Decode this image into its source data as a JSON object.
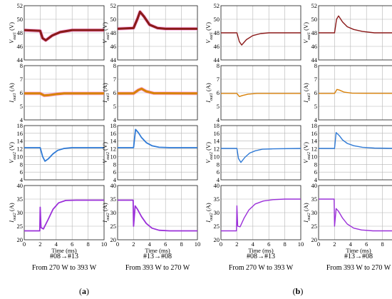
{
  "figure": {
    "panel_labels": [
      "(a)",
      "(b)"
    ],
    "caption_col1_l1": "#08→#13",
    "caption_col1_l2": "From 270 W to 393 W",
    "caption_col2_l1": "#13→#08",
    "caption_col2_l2": "From 393 W to 270 W",
    "xlabel": "Time (ms)",
    "rows": [
      {
        "sym": "V",
        "sub": "out1",
        "unit": "(V)",
        "ylim": [
          44,
          52
        ],
        "yticks": [
          44,
          46,
          48,
          50,
          52
        ],
        "color": "#8B1A1A",
        "halo": "#ff66cc"
      },
      {
        "sym": "I",
        "sub": "out1",
        "unit": "(A)",
        "ylim": [
          4,
          8
        ],
        "yticks": [
          4,
          5,
          6,
          7,
          8
        ],
        "color": "#d9820a",
        "halo": "#ff66cc"
      },
      {
        "sym": "V",
        "sub": "out2",
        "unit": "(V)",
        "ylim": [
          4,
          18
        ],
        "yticks": [
          4,
          6,
          8,
          10,
          12,
          14,
          16,
          18
        ],
        "color": "#2f7ad6",
        "halo": null
      },
      {
        "sym": "I",
        "sub": "out2",
        "unit": "(A)",
        "ylim": [
          20,
          40
        ],
        "yticks": [
          20,
          25,
          30,
          35,
          40
        ],
        "color": "#9b30d9",
        "halo": null
      }
    ],
    "xticks": [
      0,
      2,
      4,
      6,
      8,
      10
    ]
  },
  "chart_data": [
    {
      "type": "line",
      "panel": "a",
      "row": "Vout1",
      "transition": "#08→#13",
      "xlabel": "Time (ms)",
      "ylabel": "Vout1 (V)",
      "xlim": [
        0,
        10
      ],
      "ylim": [
        44,
        52
      ],
      "x": [
        0,
        2,
        2.3,
        2.7,
        3.5,
        4.5,
        6,
        10
      ],
      "y": [
        48.4,
        48.3,
        47.2,
        46.9,
        47.6,
        48.1,
        48.4,
        48.4
      ]
    },
    {
      "type": "line",
      "panel": "a",
      "row": "Vout1",
      "transition": "#13→#08",
      "xlabel": "Time (ms)",
      "ylabel": "Vout1 (V)",
      "xlim": [
        0,
        10
      ],
      "ylim": [
        44,
        52
      ],
      "x": [
        0,
        2,
        2.5,
        2.8,
        3.3,
        4,
        5,
        6,
        10
      ],
      "y": [
        48.6,
        48.7,
        50.1,
        51.1,
        50.4,
        49.2,
        48.7,
        48.6,
        48.6
      ]
    },
    {
      "type": "line",
      "panel": "a",
      "row": "Iout1",
      "transition": "#08→#13",
      "xlabel": "Time (ms)",
      "ylabel": "Iout1 (A)",
      "xlim": [
        0,
        10
      ],
      "ylim": [
        4,
        8
      ],
      "x": [
        0,
        2,
        2.5,
        3,
        4,
        5,
        10
      ],
      "y": [
        5.95,
        5.95,
        5.8,
        5.82,
        5.9,
        5.95,
        5.95
      ]
    },
    {
      "type": "line",
      "panel": "a",
      "row": "Iout1",
      "transition": "#13→#08",
      "xlabel": "Time (ms)",
      "ylabel": "Iout1 (A)",
      "xlim": [
        0,
        10
      ],
      "ylim": [
        4,
        8
      ],
      "x": [
        0,
        2,
        2.6,
        3,
        3.6,
        4.5,
        10
      ],
      "y": [
        5.95,
        5.95,
        6.2,
        6.3,
        6.1,
        5.97,
        5.95
      ]
    },
    {
      "type": "line",
      "panel": "a",
      "row": "Vout2",
      "transition": "#08→#13",
      "xlabel": "Time (ms)",
      "ylabel": "Vout2 (V)",
      "xlim": [
        0,
        10
      ],
      "ylim": [
        4,
        18
      ],
      "x": [
        0,
        2,
        2.3,
        2.6,
        3,
        3.6,
        4.2,
        5,
        6,
        10
      ],
      "y": [
        12.3,
        12.3,
        10.0,
        8.8,
        9.4,
        10.7,
        11.6,
        12.1,
        12.3,
        12.3
      ]
    },
    {
      "type": "line",
      "panel": "a",
      "row": "Vout2",
      "transition": "#13→#08",
      "xlabel": "Time (ms)",
      "ylabel": "Vout2 (V)",
      "xlim": [
        0,
        10
      ],
      "ylim": [
        4,
        18
      ],
      "x": [
        0,
        2,
        2.25,
        2.6,
        3,
        3.6,
        4.3,
        5.2,
        6.5,
        10
      ],
      "y": [
        12.3,
        12.3,
        17.0,
        16.2,
        14.9,
        13.6,
        12.8,
        12.4,
        12.3,
        12.3
      ]
    },
    {
      "type": "line",
      "panel": "a",
      "row": "Iout2",
      "transition": "#08→#13",
      "xlabel": "Time (ms)",
      "ylabel": "Iout2 (A)",
      "xlim": [
        0,
        10
      ],
      "ylim": [
        20,
        40
      ],
      "x": [
        0,
        1.95,
        2.0,
        2.1,
        2.4,
        3,
        3.6,
        4.3,
        5.2,
        6.5,
        10
      ],
      "y": [
        23.3,
        23.3,
        32,
        24.5,
        24.0,
        27.5,
        31.2,
        33.6,
        34.5,
        34.6,
        34.6
      ]
    },
    {
      "type": "line",
      "panel": "a",
      "row": "Iout2",
      "transition": "#13→#08",
      "xlabel": "Time (ms)",
      "ylabel": "Iout2 (A)",
      "xlim": [
        0,
        10
      ],
      "ylim": [
        20,
        40
      ],
      "x": [
        0,
        1.95,
        2.0,
        2.2,
        2.5,
        3,
        3.6,
        4.3,
        5.2,
        6.5,
        10
      ],
      "y": [
        34.6,
        34.6,
        25,
        32.5,
        31.2,
        28.5,
        26.0,
        24.3,
        23.5,
        23.3,
        23.3
      ]
    },
    {
      "type": "line",
      "panel": "b",
      "row": "Vout1",
      "transition": "#08→#13",
      "xlabel": "Time (ms)",
      "ylabel": "Vout1 (V)",
      "xlim": [
        0,
        10
      ],
      "ylim": [
        44,
        52
      ],
      "x": [
        0,
        2,
        2.3,
        2.6,
        3.2,
        4,
        5,
        6,
        10
      ],
      "y": [
        48.0,
        48.0,
        46.7,
        46.2,
        47.0,
        47.6,
        47.9,
        48.0,
        48.0
      ]
    },
    {
      "type": "line",
      "panel": "b",
      "row": "Vout1",
      "transition": "#13→#08",
      "xlabel": "Time (ms)",
      "ylabel": "Vout1 (V)",
      "xlim": [
        0,
        10
      ],
      "ylim": [
        44,
        52
      ],
      "x": [
        0,
        2,
        2.25,
        2.5,
        3,
        3.6,
        4.4,
        5.5,
        7,
        10
      ],
      "y": [
        48.0,
        48.0,
        50.0,
        50.5,
        49.6,
        48.9,
        48.5,
        48.2,
        48.0,
        48.0
      ]
    },
    {
      "type": "line",
      "panel": "b",
      "row": "Iout1",
      "transition": "#08→#13",
      "xlabel": "Time (ms)",
      "ylabel": "Iout1 (A)",
      "xlim": [
        0,
        10
      ],
      "ylim": [
        4,
        8
      ],
      "x": [
        0,
        2,
        2.3,
        2.7,
        3.4,
        4.5,
        10
      ],
      "y": [
        5.95,
        5.95,
        5.72,
        5.8,
        5.9,
        5.95,
        5.95
      ]
    },
    {
      "type": "line",
      "panel": "b",
      "row": "Iout1",
      "transition": "#13→#08",
      "xlabel": "Time (ms)",
      "ylabel": "Iout1 (A)",
      "xlim": [
        0,
        10
      ],
      "ylim": [
        4,
        8
      ],
      "x": [
        0,
        2,
        2.3,
        2.6,
        3.2,
        4.2,
        10
      ],
      "y": [
        5.95,
        5.95,
        6.25,
        6.2,
        6.05,
        5.97,
        5.95
      ]
    },
    {
      "type": "line",
      "panel": "b",
      "row": "Vout2",
      "transition": "#08→#13",
      "xlabel": "Time (ms)",
      "ylabel": "Vout2 (V)",
      "xlim": [
        0,
        10
      ],
      "ylim": [
        4,
        18
      ],
      "x": [
        0,
        2,
        2.2,
        2.5,
        3,
        3.6,
        4.3,
        5.2,
        6.5,
        10
      ],
      "y": [
        12.1,
        12.1,
        9.5,
        8.5,
        9.8,
        10.9,
        11.5,
        11.9,
        12.0,
        12.1
      ]
    },
    {
      "type": "line",
      "panel": "b",
      "row": "Vout2",
      "transition": "#13→#08",
      "xlabel": "Time (ms)",
      "ylabel": "Vout2 (V)",
      "xlim": [
        0,
        10
      ],
      "ylim": [
        4,
        18
      ],
      "x": [
        0,
        2,
        2.2,
        2.6,
        3,
        3.6,
        4.4,
        5.5,
        7,
        10
      ],
      "y": [
        12.1,
        12.1,
        16.2,
        15.4,
        14.3,
        13.4,
        12.8,
        12.4,
        12.2,
        12.1
      ]
    },
    {
      "type": "line",
      "panel": "b",
      "row": "Iout2",
      "transition": "#08→#13",
      "xlabel": "Time (ms)",
      "ylabel": "Iout2 (A)",
      "xlim": [
        0,
        10
      ],
      "ylim": [
        20,
        40
      ],
      "x": [
        0,
        1.95,
        2.0,
        2.1,
        2.4,
        2.9,
        3.5,
        4.3,
        5.3,
        6.5,
        8,
        10
      ],
      "y": [
        23.3,
        23.3,
        32.5,
        25,
        24.8,
        28.0,
        31.0,
        33.2,
        34.3,
        34.8,
        35.0,
        35.0
      ]
    },
    {
      "type": "line",
      "panel": "b",
      "row": "Iout2",
      "transition": "#13→#08",
      "xlabel": "Time (ms)",
      "ylabel": "Iout2 (A)",
      "xlim": [
        0,
        10
      ],
      "ylim": [
        20,
        40
      ],
      "x": [
        0,
        1.95,
        2.0,
        2.2,
        2.5,
        3,
        3.6,
        4.4,
        5.4,
        6.8,
        10
      ],
      "y": [
        35.0,
        35.0,
        25,
        31.5,
        30.5,
        28.0,
        25.8,
        24.3,
        23.6,
        23.3,
        23.3
      ]
    }
  ]
}
